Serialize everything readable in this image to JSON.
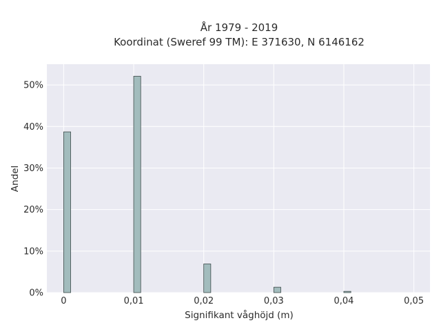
{
  "chart_data": {
    "type": "bar",
    "title": "År 1979 - 2019",
    "subtitle": "Koordinat (Sweref 99 TM): E 371630, N 6146162",
    "xlabel": "Signifikant våghöjd (m)",
    "ylabel": "Andel",
    "x": [
      0,
      0.01,
      0.02,
      0.03,
      0.04
    ],
    "values": [
      0.387,
      0.521,
      0.069,
      0.013,
      0.003
    ],
    "xlim": [
      -0.0024,
      0.0523
    ],
    "ylim": [
      0,
      0.55
    ],
    "x_ticks": [
      0,
      0.01,
      0.02,
      0.03,
      0.04,
      0.05
    ],
    "x_tick_labels": [
      "0",
      "0,01",
      "0,02",
      "0,03",
      "0,04",
      "0,05"
    ],
    "y_ticks": [
      0,
      0.1,
      0.2,
      0.3,
      0.4,
      0.5
    ],
    "y_tick_labels": [
      "0%",
      "10%",
      "20%",
      "30%",
      "40%",
      "50%"
    ],
    "grid": true,
    "colors": {
      "bar_fill": "#a2bcbd",
      "bar_edge": "#3d4a4a",
      "plot_background": "#eaeaf2",
      "grid": "#ffffff"
    }
  }
}
